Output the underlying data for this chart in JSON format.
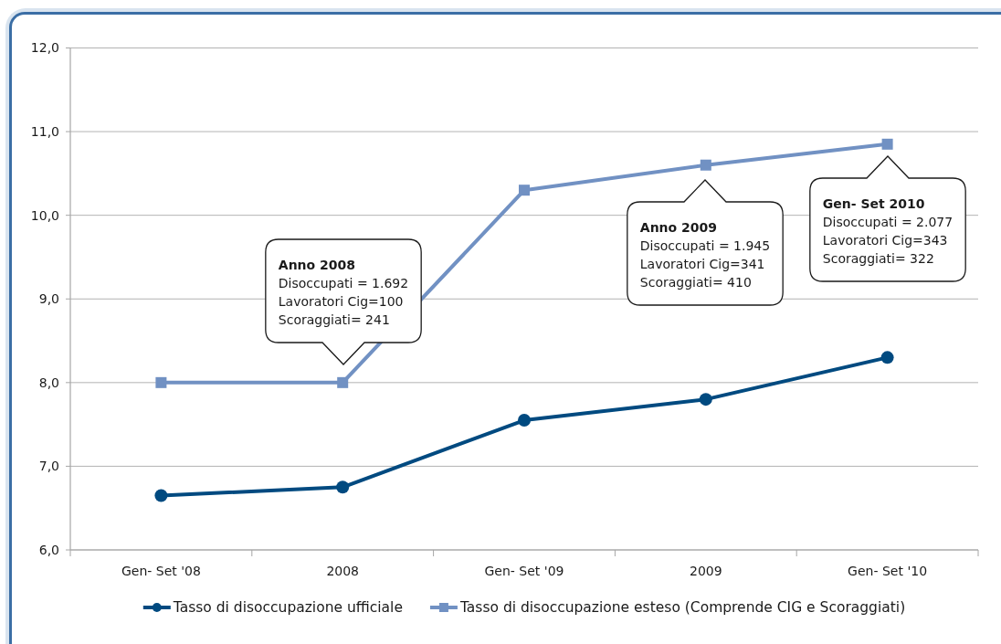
{
  "chart_data": {
    "type": "line",
    "categories": [
      "Gen- Set '08",
      "2008",
      "Gen- Set '09",
      "2009",
      "Gen- Set '10"
    ],
    "series": [
      {
        "name": "Tasso di disoccupazione ufficiale",
        "color": "#004a80",
        "marker": "circle",
        "values": [
          6.65,
          6.75,
          7.55,
          7.8,
          8.3
        ]
      },
      {
        "name": "Tasso di disoccupazione esteso (Comprende CIG e Scoraggiati)",
        "color": "#7191c3",
        "marker": "square",
        "values": [
          8.0,
          8.0,
          10.3,
          10.6,
          10.85
        ]
      }
    ],
    "ylim": [
      6,
      12
    ],
    "yticks": [
      {
        "value": 6,
        "label": "6,0"
      },
      {
        "value": 7,
        "label": "7,0"
      },
      {
        "value": 8,
        "label": "8,0"
      },
      {
        "value": 9,
        "label": "9,0"
      },
      {
        "value": 10,
        "label": "10,0"
      },
      {
        "value": 11,
        "label": "11,0"
      },
      {
        "value": 12,
        "label": "12,0"
      }
    ],
    "grid": "y",
    "legend": "bottom",
    "line_style": "solid",
    "annotations": [
      "Anno 2008\nDisoccupati = 1.692\nLavoratori Cig=100\nScoraggiati= 241",
      "Anno 2009\nDisoccupati = 1.945\nLavoratori Cig=341\nScoraggiati= 410",
      "Gen- Set 2010\nDisoccupati = 2.077\nLavoratori Cig=343\nScoraggiati= 322"
    ]
  }
}
